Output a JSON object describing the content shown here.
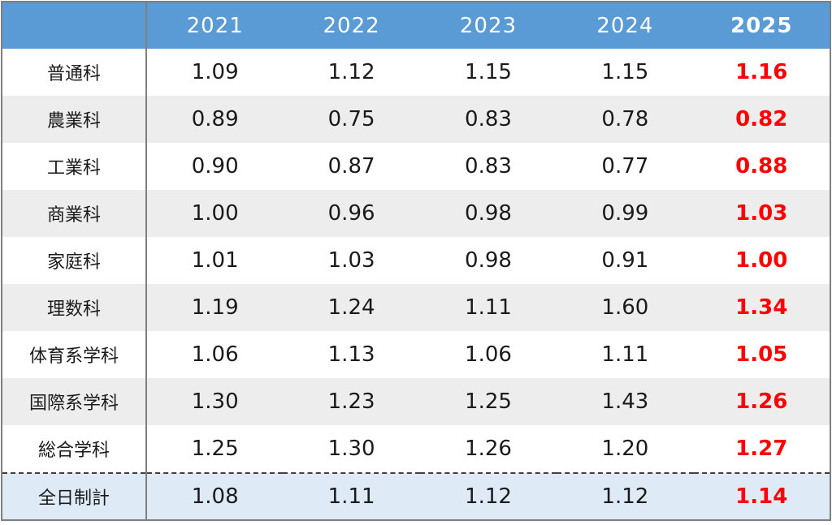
{
  "table": {
    "years": [
      "2021",
      "2022",
      "2023",
      "2024",
      "2025"
    ],
    "rows": [
      {
        "label": "普通科",
        "values": [
          "1.09",
          "1.12",
          "1.15",
          "1.15",
          "1.16"
        ]
      },
      {
        "label": "農業科",
        "values": [
          "0.89",
          "0.75",
          "0.83",
          "0.78",
          "0.82"
        ]
      },
      {
        "label": "工業科",
        "values": [
          "0.90",
          "0.87",
          "0.83",
          "0.77",
          "0.88"
        ]
      },
      {
        "label": "商業科",
        "values": [
          "1.00",
          "0.96",
          "0.98",
          "0.99",
          "1.03"
        ]
      },
      {
        "label": "家庭科",
        "values": [
          "1.01",
          "1.03",
          "0.98",
          "0.91",
          "1.00"
        ]
      },
      {
        "label": "理数科",
        "values": [
          "1.19",
          "1.24",
          "1.11",
          "1.60",
          "1.34"
        ]
      },
      {
        "label": "体育系学科",
        "values": [
          "1.06",
          "1.13",
          "1.06",
          "1.11",
          "1.05"
        ]
      },
      {
        "label": "国際系学科",
        "values": [
          "1.30",
          "1.23",
          "1.25",
          "1.43",
          "1.26"
        ]
      },
      {
        "label": "総合学科",
        "values": [
          "1.25",
          "1.30",
          "1.26",
          "1.20",
          "1.27"
        ]
      }
    ],
    "total": {
      "label": "全日制計",
      "values": [
        "1.08",
        "1.11",
        "1.12",
        "1.12",
        "1.14"
      ]
    }
  },
  "colors": {
    "header_bg": "#5b9bd5",
    "shaded_row_bg": "#ededed",
    "total_row_bg": "#deebf7",
    "highlight_text": "#ff0000"
  }
}
